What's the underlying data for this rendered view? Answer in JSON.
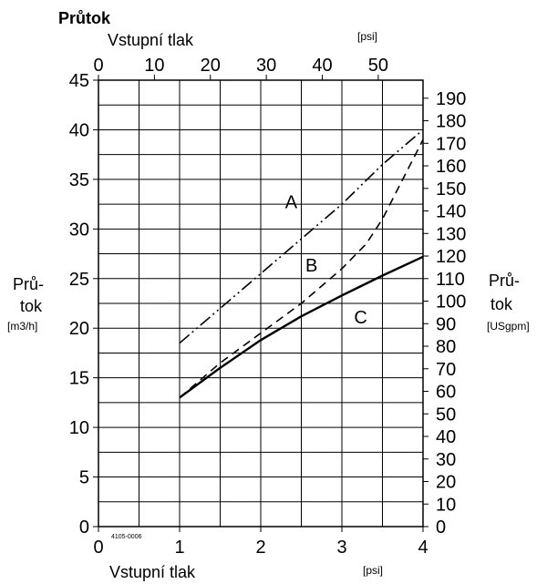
{
  "chart_data": {
    "type": "line",
    "title": "Průtok",
    "top_axis": {
      "label": "Vstupní tlak",
      "unit": "[psi]",
      "ticks": [
        0,
        10,
        20,
        30,
        40,
        50
      ],
      "range": [
        0,
        58
      ]
    },
    "bottom_axis": {
      "label": "Vstupní tlak",
      "unit": "[psi]",
      "ticks": [
        0,
        1,
        2,
        3,
        4
      ],
      "range": [
        0,
        4
      ]
    },
    "left_axis": {
      "label_line1": "Prů-",
      "label_line2": "tok",
      "unit": "[m3/h]",
      "ticks": [
        0,
        5,
        10,
        15,
        20,
        25,
        30,
        35,
        40,
        45
      ],
      "range": [
        0,
        45
      ]
    },
    "right_axis": {
      "label_line1": "Prů-",
      "label_line2": "tok",
      "unit": "[USgpm]",
      "ticks": [
        0,
        10,
        20,
        30,
        40,
        50,
        60,
        70,
        80,
        90,
        100,
        110,
        120,
        130,
        140,
        150,
        160,
        170,
        180,
        190
      ],
      "range": [
        0,
        198
      ]
    },
    "grid": true,
    "series": [
      {
        "name": "A",
        "style": "dash-dot-dot",
        "x": [
          1.0,
          1.5,
          2.0,
          2.5,
          3.0,
          3.5,
          4.0
        ],
        "y": [
          18.5,
          22.0,
          25.5,
          29.0,
          32.5,
          36.5,
          40.0
        ]
      },
      {
        "name": "B",
        "style": "dashed",
        "x": [
          1.0,
          1.5,
          2.0,
          2.5,
          3.0,
          3.3,
          3.5,
          3.75,
          4.0
        ],
        "y": [
          13.0,
          16.5,
          19.5,
          22.5,
          26.0,
          28.5,
          31.0,
          35.0,
          39.0
        ]
      },
      {
        "name": "C",
        "style": "solid",
        "x": [
          1.0,
          1.5,
          2.0,
          2.5,
          3.0,
          3.5,
          4.0
        ],
        "y": [
          13.0,
          16.0,
          18.8,
          21.2,
          23.3,
          25.3,
          27.2
        ]
      }
    ],
    "annotations": [
      "4105-0006"
    ]
  }
}
